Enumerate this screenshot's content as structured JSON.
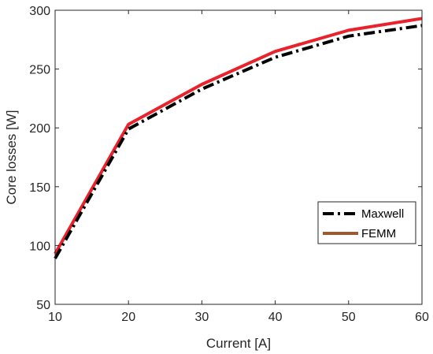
{
  "chart_data": {
    "type": "line",
    "title": "",
    "xlabel": "Current [A]",
    "ylabel": "Core losses [W]",
    "xlim": [
      10,
      60
    ],
    "ylim": [
      50,
      300
    ],
    "xticks": [
      10,
      20,
      30,
      40,
      50,
      60
    ],
    "yticks": [
      50,
      100,
      150,
      200,
      250,
      300
    ],
    "grid": false,
    "legend_position": "bottom-right",
    "x": [
      10,
      20,
      30,
      40,
      50,
      60
    ],
    "series": [
      {
        "name": "Maxwell",
        "values": [
          89,
          199,
          233,
          260,
          278,
          287
        ],
        "color": "#000000",
        "style": "dash-dot"
      },
      {
        "name": "FEMM",
        "values": [
          93,
          203,
          237,
          265,
          283,
          293
        ],
        "color": "#e8232b",
        "style": "solid"
      }
    ],
    "legend": [
      {
        "name": "Maxwell",
        "color": "#000000",
        "style": "dash-dot"
      },
      {
        "name": "FEMM",
        "color": "#9c5a32",
        "style": "solid"
      }
    ]
  }
}
